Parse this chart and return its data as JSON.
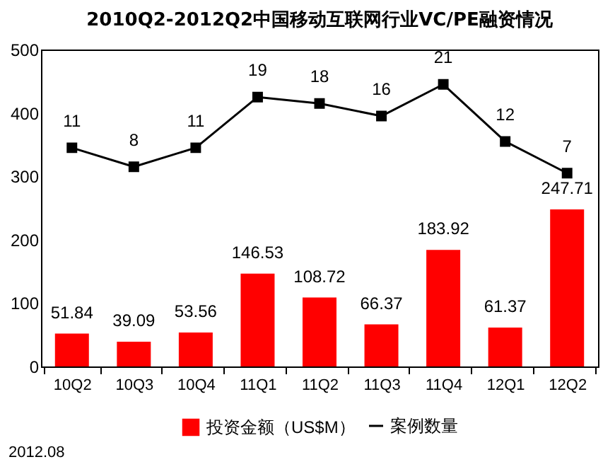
{
  "chart_data": {
    "type": "bar",
    "title": "2010Q2-2012Q2中国移动互联网行业VC/PE融资情况",
    "categories": [
      "10Q2",
      "10Q3",
      "10Q4",
      "11Q1",
      "11Q2",
      "11Q3",
      "11Q4",
      "12Q1",
      "12Q2"
    ],
    "series": [
      {
        "name": "投资金额（US$M）",
        "color": "#ff0000",
        "values": [
          51.84,
          39.09,
          53.56,
          146.53,
          108.72,
          66.37,
          183.92,
          61.37,
          247.71
        ]
      },
      {
        "name": "案例数量",
        "type": "line",
        "axis": "y2",
        "color": "#000000",
        "values": [
          11,
          8,
          11,
          19,
          18,
          16,
          21,
          12,
          7
        ]
      }
    ],
    "ylim": [
      0,
      500
    ],
    "yticks": [
      0,
      100,
      200,
      300,
      400,
      500
    ],
    "y2lim": [
      -23.5,
      26.5
    ],
    "data_labels": true,
    "marker": "square",
    "legend": "bottom",
    "annotations": [
      "2012.08"
    ]
  }
}
